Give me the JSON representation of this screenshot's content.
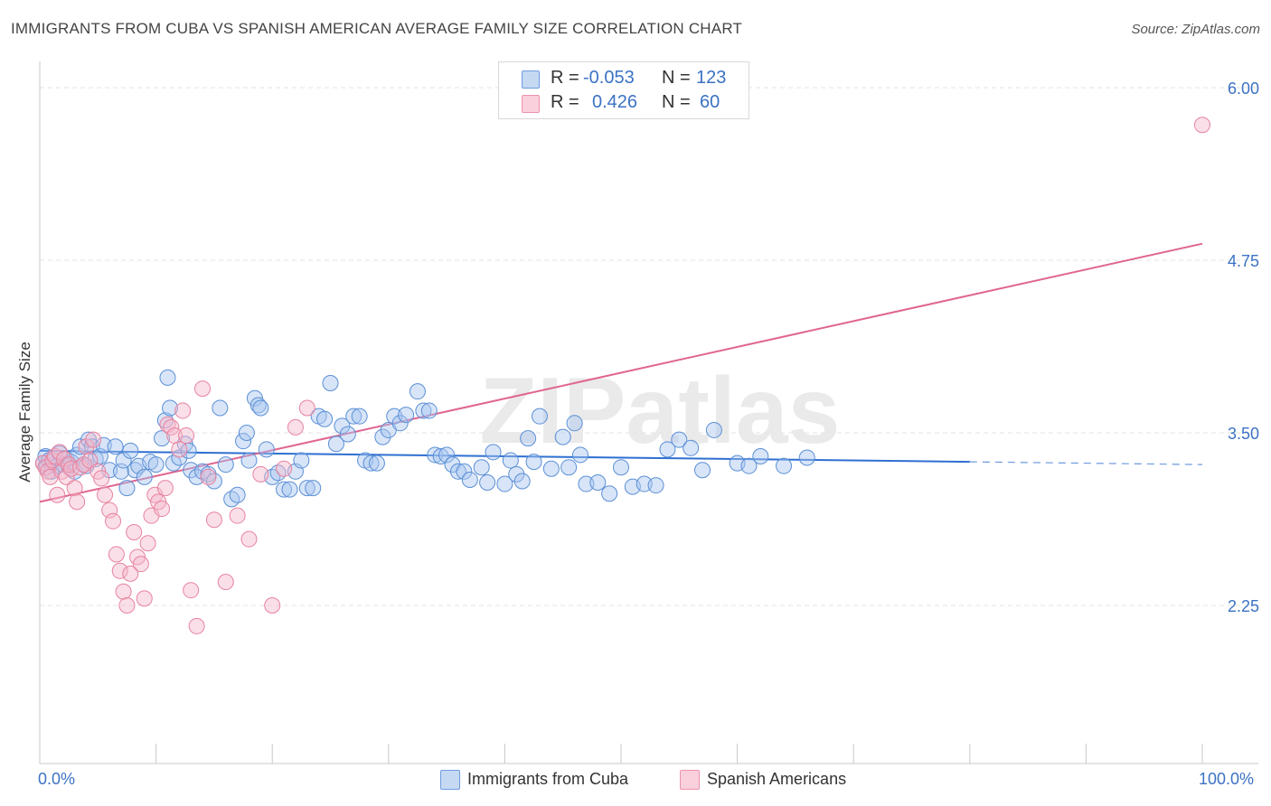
{
  "title": "IMMIGRANTS FROM CUBA VS SPANISH AMERICAN AVERAGE FAMILY SIZE CORRELATION CHART",
  "source": "Source: ZipAtlas.com",
  "watermark": "ZIPatlas",
  "colors": {
    "blue_fill": "#a9c6ef",
    "blue_stroke": "#5b8fd6",
    "blue_line": "#2e6fd1",
    "pink_fill": "#f5b8cb",
    "pink_stroke": "#e8839f",
    "pink_line": "#e06590",
    "axis_label": "#3b72c4",
    "grid": "#e3e3e3"
  },
  "legend": {
    "rows": [
      {
        "r_label": "R =",
        "r_value": "-0.053",
        "n_label": "N =",
        "n_value": "123"
      },
      {
        "r_label": "R =",
        "r_value": "0.426",
        "n_label": "N =",
        "n_value": "60"
      }
    ]
  },
  "bottom_legend": {
    "series1": "Immigrants from Cuba",
    "series2": "Spanish Americans"
  },
  "chart_data": {
    "type": "scatter",
    "title": "IMMIGRANTS FROM CUBA VS SPANISH AMERICAN AVERAGE FAMILY SIZE CORRELATION CHART",
    "xlabel": "",
    "ylabel": "Average Family Size",
    "xlim": [
      0,
      100
    ],
    "ylim": [
      1.0,
      6.25
    ],
    "x_tick_labels": [
      "0.0%",
      "100.0%"
    ],
    "y_ticks": [
      2.25,
      3.5,
      4.75,
      6.0
    ],
    "y_tick_labels": [
      "2.25",
      "3.50",
      "4.75",
      "6.00"
    ],
    "grid": true,
    "series": [
      {
        "name": "Immigrants from Cuba",
        "r": -0.053,
        "n": 123,
        "trend": {
          "x0": 0,
          "y0": 3.37,
          "x1": 80,
          "y1": 3.29,
          "dash_to_x": 100,
          "dash_to_y": 3.27
        },
        "points": [
          [
            0.3,
            3.28
          ],
          [
            0.5,
            3.33
          ],
          [
            0.6,
            3.25
          ],
          [
            0.8,
            3.3
          ],
          [
            1.0,
            3.22
          ],
          [
            1.2,
            3.3
          ],
          [
            1.5,
            3.26
          ],
          [
            1.7,
            3.35
          ],
          [
            2.0,
            3.27
          ],
          [
            2.3,
            3.31
          ],
          [
            2.5,
            3.26
          ],
          [
            2.7,
            3.29
          ],
          [
            3.0,
            3.22
          ],
          [
            3.2,
            3.34
          ],
          [
            3.5,
            3.4
          ],
          [
            3.8,
            3.27
          ],
          [
            4.0,
            3.26
          ],
          [
            4.2,
            3.45
          ],
          [
            4.5,
            3.4
          ],
          [
            4.8,
            3.31
          ],
          [
            5.2,
            3.33
          ],
          [
            5.5,
            3.41
          ],
          [
            6.0,
            3.23
          ],
          [
            6.5,
            3.4
          ],
          [
            7.0,
            3.22
          ],
          [
            7.2,
            3.3
          ],
          [
            7.5,
            3.1
          ],
          [
            7.8,
            3.37
          ],
          [
            8.2,
            3.23
          ],
          [
            8.5,
            3.26
          ],
          [
            9.0,
            3.18
          ],
          [
            9.5,
            3.29
          ],
          [
            10.0,
            3.27
          ],
          [
            10.5,
            3.46
          ],
          [
            10.8,
            3.59
          ],
          [
            11.0,
            3.9
          ],
          [
            11.2,
            3.68
          ],
          [
            11.5,
            3.28
          ],
          [
            12.0,
            3.32
          ],
          [
            12.5,
            3.42
          ],
          [
            12.8,
            3.37
          ],
          [
            13.0,
            3.23
          ],
          [
            13.5,
            3.18
          ],
          [
            14.0,
            3.22
          ],
          [
            14.5,
            3.2
          ],
          [
            15.0,
            3.15
          ],
          [
            15.5,
            3.68
          ],
          [
            16.0,
            3.27
          ],
          [
            16.5,
            3.02
          ],
          [
            17.0,
            3.05
          ],
          [
            17.5,
            3.44
          ],
          [
            17.8,
            3.5
          ],
          [
            18.0,
            3.3
          ],
          [
            18.5,
            3.75
          ],
          [
            18.8,
            3.7
          ],
          [
            19.0,
            3.68
          ],
          [
            19.5,
            3.38
          ],
          [
            20.0,
            3.18
          ],
          [
            20.5,
            3.21
          ],
          [
            21.0,
            3.09
          ],
          [
            21.5,
            3.09
          ],
          [
            22.0,
            3.22
          ],
          [
            22.5,
            3.3
          ],
          [
            23.0,
            3.1
          ],
          [
            23.5,
            3.1
          ],
          [
            24.0,
            3.62
          ],
          [
            24.5,
            3.6
          ],
          [
            25.0,
            3.86
          ],
          [
            25.5,
            3.42
          ],
          [
            26.0,
            3.55
          ],
          [
            26.5,
            3.49
          ],
          [
            27.0,
            3.62
          ],
          [
            27.5,
            3.62
          ],
          [
            28.0,
            3.3
          ],
          [
            28.5,
            3.28
          ],
          [
            29.0,
            3.28
          ],
          [
            29.5,
            3.47
          ],
          [
            30.0,
            3.52
          ],
          [
            30.5,
            3.62
          ],
          [
            31.0,
            3.57
          ],
          [
            31.5,
            3.63
          ],
          [
            32.5,
            3.8
          ],
          [
            33.0,
            3.66
          ],
          [
            33.5,
            3.66
          ],
          [
            34.0,
            3.34
          ],
          [
            34.5,
            3.33
          ],
          [
            35.0,
            3.34
          ],
          [
            35.5,
            3.27
          ],
          [
            36.0,
            3.22
          ],
          [
            36.5,
            3.22
          ],
          [
            37.0,
            3.16
          ],
          [
            38.0,
            3.25
          ],
          [
            38.5,
            3.14
          ],
          [
            39.0,
            3.36
          ],
          [
            40.0,
            3.13
          ],
          [
            40.5,
            3.3
          ],
          [
            41.0,
            3.2
          ],
          [
            41.5,
            3.15
          ],
          [
            42.0,
            3.46
          ],
          [
            42.5,
            3.29
          ],
          [
            43.0,
            3.62
          ],
          [
            44.0,
            3.24
          ],
          [
            45.0,
            3.47
          ],
          [
            45.5,
            3.25
          ],
          [
            46.0,
            3.57
          ],
          [
            46.5,
            3.34
          ],
          [
            47.0,
            3.13
          ],
          [
            48.0,
            3.14
          ],
          [
            49.0,
            3.06
          ],
          [
            50.0,
            3.25
          ],
          [
            51.0,
            3.11
          ],
          [
            52.0,
            3.13
          ],
          [
            53.0,
            3.12
          ],
          [
            54.0,
            3.38
          ],
          [
            55.0,
            3.45
          ],
          [
            56.0,
            3.39
          ],
          [
            57.0,
            3.23
          ],
          [
            58.0,
            3.52
          ],
          [
            60.0,
            3.28
          ],
          [
            61.0,
            3.26
          ],
          [
            62.0,
            3.33
          ],
          [
            64.0,
            3.26
          ],
          [
            66.0,
            3.32
          ]
        ]
      },
      {
        "name": "Spanish Americans",
        "r": 0.426,
        "n": 60,
        "trend": {
          "x0": 0,
          "y0": 3.0,
          "x1": 100,
          "y1": 4.87
        },
        "points": [
          [
            0.3,
            3.28
          ],
          [
            0.5,
            3.25
          ],
          [
            0.7,
            3.22
          ],
          [
            0.9,
            3.18
          ],
          [
            1.1,
            3.3
          ],
          [
            1.3,
            3.33
          ],
          [
            1.5,
            3.05
          ],
          [
            1.7,
            3.36
          ],
          [
            1.9,
            3.22
          ],
          [
            2.1,
            3.31
          ],
          [
            2.3,
            3.18
          ],
          [
            2.5,
            3.27
          ],
          [
            2.7,
            3.24
          ],
          [
            3.0,
            3.1
          ],
          [
            3.2,
            3.0
          ],
          [
            3.5,
            3.25
          ],
          [
            3.8,
            3.27
          ],
          [
            4.0,
            3.4
          ],
          [
            4.3,
            3.3
          ],
          [
            4.6,
            3.45
          ],
          [
            5.0,
            3.22
          ],
          [
            5.3,
            3.17
          ],
          [
            5.6,
            3.05
          ],
          [
            6.0,
            2.94
          ],
          [
            6.3,
            2.86
          ],
          [
            6.6,
            2.62
          ],
          [
            6.9,
            2.5
          ],
          [
            7.2,
            2.35
          ],
          [
            7.5,
            2.25
          ],
          [
            7.8,
            2.48
          ],
          [
            8.1,
            2.78
          ],
          [
            8.4,
            2.6
          ],
          [
            8.7,
            2.55
          ],
          [
            9.0,
            2.3
          ],
          [
            9.3,
            2.7
          ],
          [
            9.6,
            2.9
          ],
          [
            9.9,
            3.05
          ],
          [
            10.2,
            3.0
          ],
          [
            10.5,
            2.95
          ],
          [
            10.8,
            3.1
          ],
          [
            11.0,
            3.56
          ],
          [
            11.3,
            3.54
          ],
          [
            11.6,
            3.48
          ],
          [
            12.0,
            3.38
          ],
          [
            12.3,
            3.66
          ],
          [
            12.6,
            3.48
          ],
          [
            13.0,
            2.36
          ],
          [
            13.5,
            2.1
          ],
          [
            14.0,
            3.82
          ],
          [
            14.5,
            3.18
          ],
          [
            15.0,
            2.87
          ],
          [
            16.0,
            2.42
          ],
          [
            17.0,
            2.9
          ],
          [
            18.0,
            2.73
          ],
          [
            19.0,
            3.2
          ],
          [
            20.0,
            2.25
          ],
          [
            21.0,
            3.24
          ],
          [
            22.0,
            3.54
          ],
          [
            23.0,
            3.68
          ],
          [
            100.0,
            5.73
          ]
        ]
      }
    ]
  }
}
